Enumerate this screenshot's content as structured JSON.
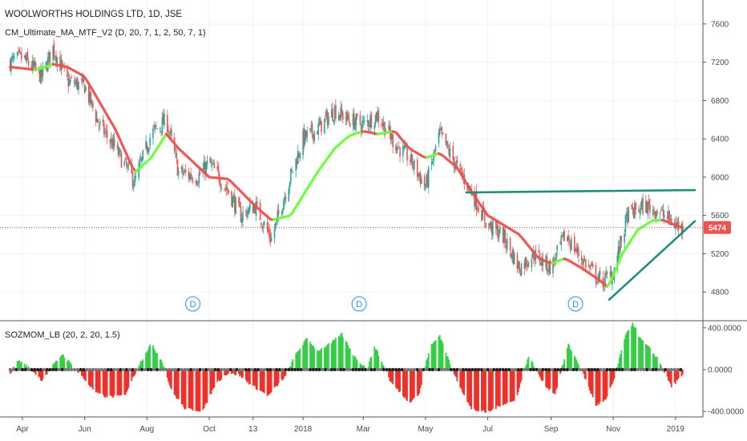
{
  "colors": {
    "up_candle": "#26a69a",
    "down_candle": "#ef5350",
    "ma_up": "#66ff33",
    "ma_down": "#ef4f4f",
    "trendline": "#1e8f7a",
    "price_line": "#e53935",
    "price_tag": "#ef5350",
    "mom_pos": "#2ecc40",
    "mom_neg": "#ee2a24",
    "dividend": "#2196f3",
    "axis_text": "#4a4a4a",
    "grid": "#f2f2f2",
    "separator": "#555555"
  },
  "header": {
    "title": "WOOLWORTHS HOLDINGS LTD, 1D, JSE",
    "indicator": "CM_Ultimate_MA_MTF_V2 (D, 20, 7, 1, 2, 50, 7, 1)"
  },
  "price_tag": "5474",
  "dividend_label": "D",
  "subpanel": {
    "indicator": "SOZMOM_LB (20, 2, 20, 1.5)"
  },
  "chart_data": [
    {
      "type": "candlestick",
      "title": "WOOLWORTHS HOLDINGS LTD, 1D, JSE",
      "ylim": [
        4500,
        7850
      ],
      "y_ticks": [
        4800,
        5200,
        5600,
        6000,
        6400,
        6800,
        7200,
        7600
      ],
      "x_ticks": [
        "Apr",
        "Jun",
        "Aug",
        "Oct",
        "13",
        "2018",
        "Mar",
        "May",
        "Jul",
        "Sep",
        "Nov",
        "2019"
      ],
      "last_price": 5474,
      "price_anchors": {
        "x": [
          "2017-03-20",
          "2017-04-01",
          "2017-04-20",
          "2017-05-01",
          "2017-05-15",
          "2017-06-01",
          "2017-06-15",
          "2017-07-01",
          "2017-07-20",
          "2017-08-05",
          "2017-08-20",
          "2017-09-01",
          "2017-09-20",
          "2017-10-01",
          "2017-10-20",
          "2017-11-01",
          "2017-11-15",
          "2017-12-01",
          "2017-12-15",
          "2018-01-01",
          "2018-01-15",
          "2018-02-01",
          "2018-02-15",
          "2018-03-01",
          "2018-03-15",
          "2018-04-01",
          "2018-04-15",
          "2018-05-01",
          "2018-05-15",
          "2018-06-01",
          "2018-06-15",
          "2018-07-01",
          "2018-07-15",
          "2018-08-01",
          "2018-08-15",
          "2018-09-01",
          "2018-09-15",
          "2018-10-01",
          "2018-10-20",
          "2018-11-01",
          "2018-11-15",
          "2018-12-01",
          "2018-12-15",
          "2019-01-01",
          "2019-01-08"
        ],
        "close": [
          7200,
          7250,
          7050,
          7350,
          7000,
          6950,
          6550,
          6300,
          5950,
          6450,
          6600,
          6050,
          6000,
          6150,
          5850,
          5600,
          5700,
          5350,
          5850,
          6400,
          6500,
          6700,
          6600,
          6550,
          6650,
          6350,
          6200,
          5900,
          6450,
          6100,
          5850,
          5500,
          5400,
          5050,
          5200,
          5050,
          5400,
          5150,
          4900,
          5000,
          5600,
          5700,
          5650,
          5500,
          5474
        ]
      },
      "moving_average": {
        "name": "CM_Ultimate_MA_MTF_V2",
        "x": [
          "2017-03-20",
          "2017-04-15",
          "2017-05-01",
          "2017-05-15",
          "2017-06-01",
          "2017-07-01",
          "2017-07-20",
          "2017-08-05",
          "2017-08-20",
          "2017-09-01",
          "2017-10-01",
          "2017-10-20",
          "2017-11-15",
          "2017-12-01",
          "2017-12-20",
          "2018-01-15",
          "2018-02-01",
          "2018-02-15",
          "2018-03-01",
          "2018-03-15",
          "2018-04-01",
          "2018-04-15",
          "2018-05-01",
          "2018-05-15",
          "2018-06-01",
          "2018-06-15",
          "2018-07-01",
          "2018-08-01",
          "2018-08-20",
          "2018-09-01",
          "2018-09-15",
          "2018-10-01",
          "2018-10-15",
          "2018-10-27",
          "2018-11-10",
          "2018-11-25",
          "2018-12-10",
          "2018-12-20",
          "2019-01-08"
        ],
        "values": [
          7150,
          7120,
          7180,
          7150,
          7050,
          6500,
          6050,
          6200,
          6450,
          6300,
          6000,
          5980,
          5700,
          5550,
          5600,
          6050,
          6300,
          6430,
          6480,
          6450,
          6480,
          6300,
          6200,
          6250,
          6100,
          5850,
          5600,
          5400,
          5150,
          5100,
          5150,
          5050,
          4950,
          4850,
          5200,
          5450,
          5550,
          5550,
          5470
        ]
      },
      "trendlines": [
        {
          "from": [
            "2018-06-10",
            5840
          ],
          "to": [
            "2019-01-20",
            5865
          ]
        },
        {
          "from": [
            "2018-10-28",
            4720
          ],
          "to": [
            "2019-01-20",
            5540
          ]
        }
      ],
      "dividends": [
        "2017-09-15",
        "2018-02-25",
        "2018-09-25"
      ]
    },
    {
      "type": "histogram",
      "title": "SOZMOM_LB (20, 2, 20, 1.5)",
      "ylim": [
        -460,
        460
      ],
      "y_ticks": [
        400,
        0,
        -400
      ],
      "y_tick_labels": [
        "400.0000",
        "0.0000",
        "-400.0000"
      ],
      "anchors": {
        "x": [
          "2017-03-20",
          "2017-03-28",
          "2017-04-10",
          "2017-04-20",
          "2017-04-28",
          "2017-05-10",
          "2017-05-28",
          "2017-06-12",
          "2017-06-22",
          "2017-07-10",
          "2017-07-25",
          "2017-08-05",
          "2017-08-16",
          "2017-08-25",
          "2017-09-08",
          "2017-09-25",
          "2017-10-08",
          "2017-10-20",
          "2017-10-30",
          "2017-11-12",
          "2017-11-28",
          "2017-12-15",
          "2017-12-25",
          "2018-01-05",
          "2018-01-15",
          "2018-01-28",
          "2018-02-08",
          "2018-02-20",
          "2018-03-05",
          "2018-03-12",
          "2018-03-28",
          "2018-04-15",
          "2018-04-25",
          "2018-05-05",
          "2018-05-15",
          "2018-05-28",
          "2018-06-15",
          "2018-07-01",
          "2018-07-15",
          "2018-07-28",
          "2018-08-10",
          "2018-08-25",
          "2018-09-05",
          "2018-09-18",
          "2018-09-30",
          "2018-10-15",
          "2018-10-25",
          "2018-11-03",
          "2018-11-12",
          "2018-11-20",
          "2018-11-28",
          "2018-12-05",
          "2018-12-15",
          "2018-12-28",
          "2019-01-08"
        ],
        "values": [
          -30,
          90,
          0,
          -100,
          0,
          150,
          -50,
          -220,
          -260,
          -250,
          60,
          250,
          80,
          -200,
          -380,
          -390,
          -120,
          -30,
          -50,
          -150,
          -250,
          -60,
          150,
          300,
          180,
          250,
          340,
          130,
          0,
          230,
          -120,
          -310,
          -230,
          210,
          330,
          -20,
          -380,
          -410,
          -330,
          -300,
          130,
          -140,
          -230,
          240,
          20,
          -340,
          -290,
          -60,
          300,
          450,
          290,
          220,
          100,
          -160,
          -60
        ]
      }
    }
  ]
}
